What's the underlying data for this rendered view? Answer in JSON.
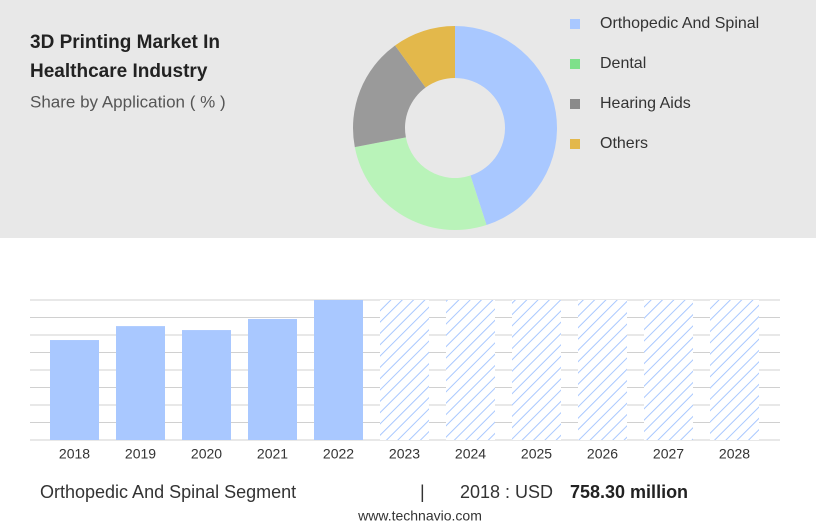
{
  "header": {
    "title_line1": "3D Printing Market In",
    "title_line2": "Healthcare Industry",
    "subtitle": "Share by Application ( % )"
  },
  "chart_data": [
    {
      "type": "donut",
      "categories": [
        "Orthopedic And Spinal",
        "Dental",
        "Hearing Aids",
        "Others"
      ],
      "values": [
        45,
        27,
        18,
        10
      ],
      "colors": [
        "#a9c8ff",
        "#b9f3b9",
        "#9a9a9a",
        "#e3b84b"
      ],
      "legend_colors": [
        "#a9c8ff",
        "#7ee08a",
        "#8a8a8a",
        "#e3b84b"
      ]
    },
    {
      "type": "bar",
      "categories": [
        "2018",
        "2019",
        "2020",
        "2021",
        "2022",
        "2023",
        "2024",
        "2025",
        "2026",
        "2027",
        "2028"
      ],
      "values": [
        758.3,
        864,
        834,
        918,
        1062,
        null,
        null,
        null,
        null,
        null,
        null
      ],
      "color": "#a9c8ff",
      "forecast_color": "#a9c8ff",
      "ylim": [
        0,
        1062
      ],
      "grid": true
    }
  ],
  "footer": {
    "segment": "Orthopedic And Spinal Segment",
    "separator": "|",
    "year_label": "2018 : USD",
    "value_label": "758.30 million",
    "source": "www.technavio.com"
  }
}
